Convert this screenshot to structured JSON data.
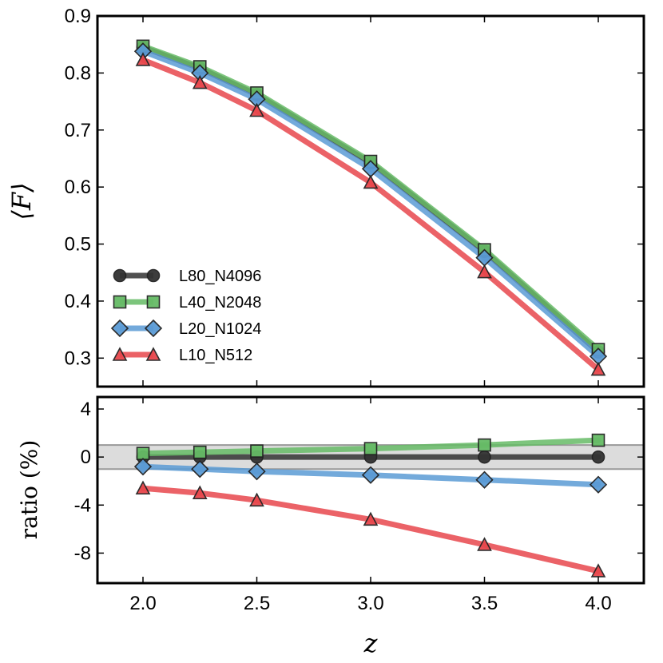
{
  "chart_data": [
    {
      "type": "line",
      "panel": "top",
      "ylabel": "⟨F⟩",
      "xlabel": "",
      "xlim": [
        1.8,
        4.2
      ],
      "ylim": [
        0.25,
        0.9
      ],
      "yticks": [
        0.3,
        0.4,
        0.5,
        0.6,
        0.7,
        0.8,
        0.9
      ],
      "ytick_labels": [
        "0.3",
        "0.4",
        "0.5",
        "0.6",
        "0.7",
        "0.8",
        "0.9"
      ],
      "x": [
        2.0,
        2.25,
        2.5,
        3.0,
        3.5,
        4.0
      ],
      "legend_position": "lower-left",
      "series": [
        {
          "name": "L80_N4096",
          "color": "#333333",
          "marker": "circle",
          "values": [
            0.845,
            0.808,
            0.762,
            0.642,
            0.487,
            0.311
          ]
        },
        {
          "name": "L40_N2048",
          "color": "#66bb66",
          "marker": "square",
          "values": [
            0.847,
            0.811,
            0.765,
            0.645,
            0.49,
            0.315
          ]
        },
        {
          "name": "L20_N1024",
          "color": "#5b9bd5",
          "marker": "diamond",
          "values": [
            0.838,
            0.8,
            0.754,
            0.632,
            0.476,
            0.303
          ]
        },
        {
          "name": "L10_N512",
          "color": "#e8474c",
          "marker": "triangle",
          "values": [
            0.823,
            0.783,
            0.734,
            0.608,
            0.451,
            0.28
          ]
        }
      ]
    },
    {
      "type": "line",
      "panel": "bottom",
      "ylabel": "ratio  (%)",
      "xlabel": "z",
      "xlim": [
        1.8,
        4.2
      ],
      "ylim": [
        -10.5,
        5
      ],
      "yticks": [
        4,
        0,
        -4,
        -8
      ],
      "ytick_labels": [
        "4",
        "0",
        "-4",
        "-8"
      ],
      "xticks": [
        2.0,
        2.5,
        3.0,
        3.5,
        4.0
      ],
      "xtick_labels": [
        "2.0",
        "2.5",
        "3.0",
        "3.5",
        "4.0"
      ],
      "band": [
        -1,
        1
      ],
      "x": [
        2.0,
        2.25,
        2.5,
        3.0,
        3.5,
        4.0
      ],
      "series": [
        {
          "name": "L80_N4096",
          "color": "#333333",
          "marker": "circle",
          "values": [
            0.0,
            0.0,
            0.0,
            0.0,
            0.0,
            0.0
          ]
        },
        {
          "name": "L40_N2048",
          "color": "#66bb66",
          "marker": "square",
          "values": [
            0.3,
            0.4,
            0.5,
            0.7,
            1.0,
            1.4
          ]
        },
        {
          "name": "L20_N1024",
          "color": "#5b9bd5",
          "marker": "diamond",
          "values": [
            -0.8,
            -1.0,
            -1.2,
            -1.5,
            -1.9,
            -2.3
          ]
        },
        {
          "name": "L10_N512",
          "color": "#e8474c",
          "marker": "triangle",
          "values": [
            -2.6,
            -3.0,
            -3.6,
            -5.2,
            -7.3,
            -9.5
          ]
        }
      ]
    }
  ]
}
